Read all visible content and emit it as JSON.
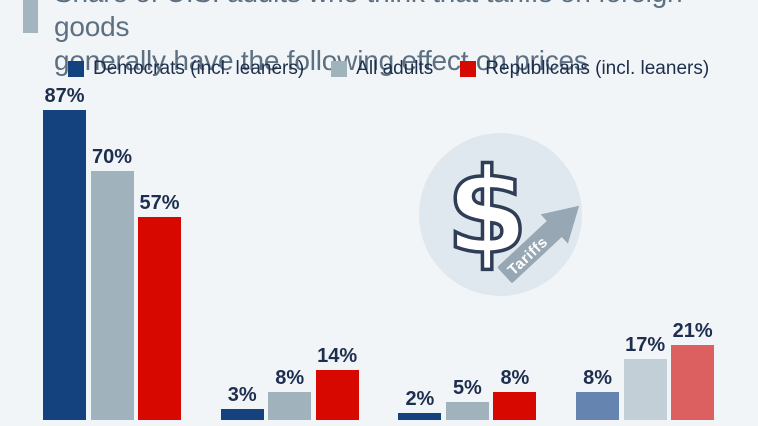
{
  "title": {
    "line1": "Share of U.S. adults who think that tariffs on foreign goods",
    "line2": "generally have the following effect on prices"
  },
  "legend": [
    {
      "label": "Democrats (incl. leaners)"
    },
    {
      "label": "All adults"
    },
    {
      "label": "Republicans (incl. leaners)"
    }
  ],
  "icon": {
    "dollar_glyph": "$",
    "arrow_label": "Tariffs"
  },
  "colors": {
    "background": "#f1f5f8",
    "title_text": "#5d7082",
    "title_marker": "#a3b5bf",
    "value_label_text": "#1d2e4e",
    "legend_text": "#1c2e49",
    "icon_circle": "#dfe8ee",
    "icon_arrow": "#97a7b3",
    "dollar_outline": "#2f3e56"
  },
  "chart_data": {
    "type": "bar",
    "title": "Share of U.S. adults who think that tariffs on foreign goods generally have the following effect on prices",
    "categories": [
      "",
      "",
      "",
      ""
    ],
    "categories_note": "category axis labels are cropped out of the screenshot",
    "value_suffix": "%",
    "series": [
      {
        "name": "Democrats (incl. leaners)",
        "color": "#14427e",
        "muted_color": "#6684b0",
        "values": [
          87,
          3,
          2,
          8
        ]
      },
      {
        "name": "All adults",
        "color": "#a0b3bc",
        "muted_color": "#c3cfd6",
        "values": [
          70,
          8,
          5,
          17
        ]
      },
      {
        "name": "Republicans (incl. leaners)",
        "color": "#d60800",
        "muted_color": "#dd6060",
        "values": [
          57,
          14,
          8,
          21
        ]
      }
    ],
    "muted_group_index": 3,
    "ylim": [
      0,
      100
    ],
    "grid": false,
    "legend_position": "top",
    "value_labels": "above bars"
  }
}
